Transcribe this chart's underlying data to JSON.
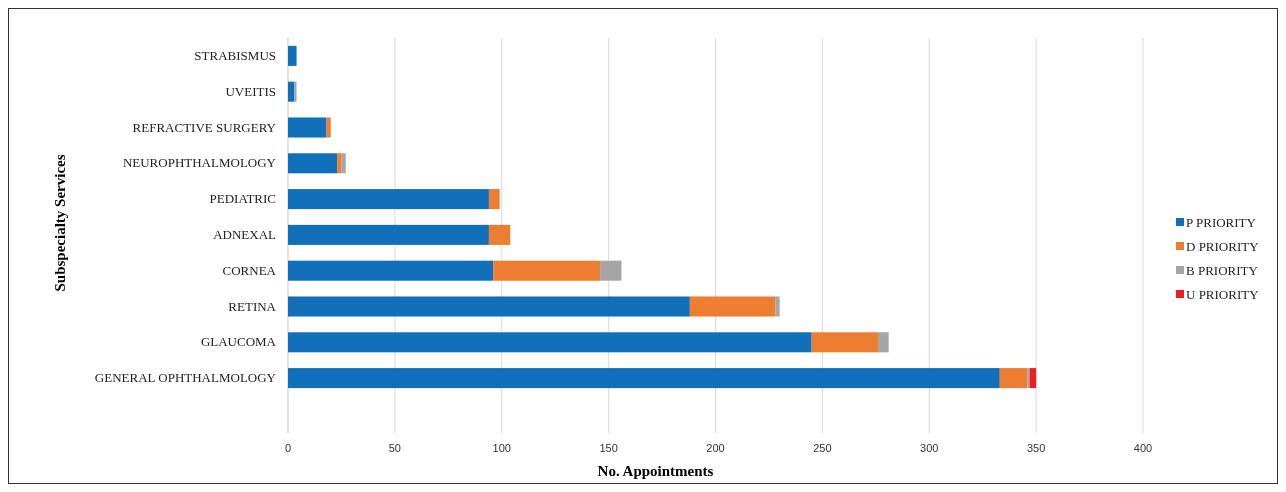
{
  "chart_data": {
    "type": "bar",
    "orientation": "horizontal",
    "stacked": true,
    "xlabel": "No. Appointments",
    "ylabel": "Subspecialty Services",
    "categories": [
      "STRABISMUS",
      "UVEITIS",
      "REFRACTIVE SURGERY",
      "NEUROPHTHALMOLOGY",
      "PEDIATRIC",
      "ADNEXAL",
      "CORNEA",
      "RETINA",
      "GLAUCOMA",
      "GENERAL OPHTHALMOLOGY"
    ],
    "series": [
      {
        "name": "P  PRIORITY",
        "color": "#1170b9",
        "values": [
          4,
          3,
          18,
          23,
          94,
          94,
          96,
          188,
          245,
          333
        ]
      },
      {
        "name": "D PRIORITY",
        "color": "#ed7d31",
        "values": [
          0,
          0,
          2,
          2,
          5,
          10,
          50,
          40,
          31,
          13
        ]
      },
      {
        "name": "B PRIORITY",
        "color": "#a5a5a5",
        "values": [
          0,
          1,
          0,
          2,
          0,
          0,
          10,
          2,
          5,
          1
        ]
      },
      {
        "name": "U PRIORITY",
        "color": "#ee1c25",
        "values": [
          0,
          0,
          0,
          0,
          0,
          0,
          0,
          0,
          0,
          3
        ]
      }
    ],
    "xlim": [
      0,
      400
    ],
    "xticks": [
      0,
      50,
      100,
      150,
      200,
      250,
      300,
      350,
      400
    ],
    "grid": "x",
    "legend": "right"
  }
}
